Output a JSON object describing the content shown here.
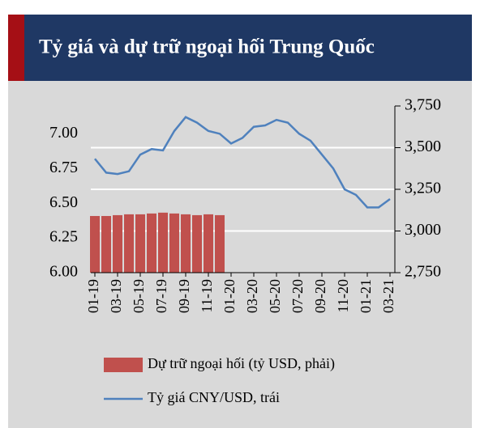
{
  "chart_data": {
    "type": "combo",
    "title": "Tỷ giá và dự trữ ngoại hối Trung Quốc",
    "categories": [
      "01-19",
      null,
      "03-19",
      null,
      "05-19",
      null,
      "07-19",
      null,
      "09-19",
      null,
      "11-19",
      null,
      "01-20",
      null,
      "03-20",
      null,
      "05-20",
      null,
      "07-20",
      null,
      "09-20",
      null,
      "11-20",
      null,
      "01-21",
      null,
      "03-21"
    ],
    "series": [
      {
        "name": "Dự trữ ngoại hối (tỷ USD, phải)",
        "type": "bar",
        "axis": "y2",
        "color": "#c0504d",
        "values": [
          3090,
          3090,
          3095,
          3100,
          3100,
          3105,
          3110,
          3105,
          3100,
          3095,
          3100,
          3095,
          null,
          null,
          null,
          null,
          null,
          null,
          null,
          null,
          null,
          null,
          null,
          null,
          null,
          null,
          null
        ]
      },
      {
        "name": "Tỷ giá CNY/USD, trái",
        "type": "line",
        "color": "#4f81bd",
        "values": [
          6.82,
          6.72,
          6.71,
          6.73,
          6.85,
          6.89,
          6.88,
          7.02,
          7.12,
          7.08,
          7.02,
          7.0,
          6.93,
          6.97,
          7.05,
          7.06,
          7.1,
          7.08,
          7.0,
          6.95,
          6.85,
          6.75,
          6.6,
          6.56,
          6.47,
          6.47,
          6.53
        ]
      }
    ],
    "ylim": [
      6.0,
      7.2
    ],
    "yticks": [
      {
        "value": 6,
        "label": "6.00"
      },
      {
        "value": 6.25,
        "label": "6.25"
      },
      {
        "value": 6.5,
        "label": "6.50"
      },
      {
        "value": 6.75,
        "label": "6.75"
      },
      {
        "value": 7,
        "label": "7.00"
      }
    ],
    "y2lim": [
      2750,
      3750
    ],
    "y2ticks": [
      {
        "value": 2750,
        "label": "2,750"
      },
      {
        "value": 3000,
        "label": "3,000"
      },
      {
        "value": 3250,
        "label": "3,250"
      },
      {
        "value": 3500,
        "label": "3,500"
      },
      {
        "value": 3750,
        "label": "3,750"
      }
    ],
    "grid": true
  }
}
